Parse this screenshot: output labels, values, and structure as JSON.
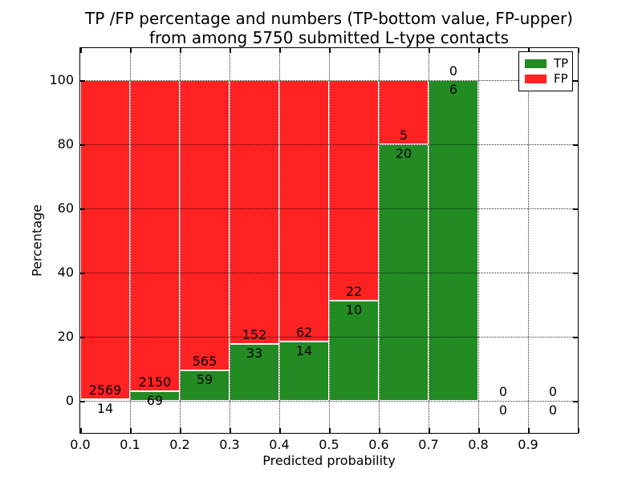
{
  "title": {
    "line1": "TP /FP percentage and numbers (TP-bottom value, FP-upper)",
    "line2": "from among 5750 submitted L-type contacts"
  },
  "chart_data": {
    "type": "bar",
    "stacked": true,
    "title": "TP /FP percentage and numbers (TP-bottom value, FP-upper) from among 5750 submitted L-type contacts",
    "xlabel": "Predicted probability",
    "ylabel": "Percentage",
    "x_tick_labels": [
      "0.0",
      "0.1",
      "0.2",
      "0.3",
      "0.4",
      "0.5",
      "0.6",
      "0.7",
      "0.8",
      "0.9"
    ],
    "bin_width": 0.1,
    "xlim": [
      0.0,
      1.0
    ],
    "y_ticks": [
      0,
      20,
      40,
      60,
      80,
      100
    ],
    "ylim": [
      -10,
      110
    ],
    "grid": "dotted, both axes, drawn over bars",
    "total_contacts": 5750,
    "series": [
      {
        "name": "TP",
        "color": "#228b22",
        "position": "bottom",
        "counts": [
          14,
          69,
          59,
          33,
          14,
          10,
          20,
          6,
          0,
          0
        ],
        "percent": [
          0.54,
          3.11,
          9.46,
          17.84,
          18.42,
          31.25,
          80.0,
          100.0,
          0.0,
          0.0
        ]
      },
      {
        "name": "FP",
        "color": "#ff2222",
        "position": "top",
        "counts": [
          2569,
          2150,
          565,
          152,
          62,
          22,
          5,
          0,
          0,
          0
        ],
        "percent": [
          99.46,
          96.89,
          90.54,
          82.16,
          81.58,
          68.75,
          20.0,
          0.0,
          0.0,
          0.0
        ]
      }
    ],
    "legend": {
      "position": "upper right",
      "entries": [
        "TP",
        "FP"
      ]
    },
    "bar_edge_color": "#ffffff"
  },
  "colors": {
    "tp": "#228b22",
    "fp": "#ff2222",
    "grid": "#000000",
    "frame": "#000000",
    "background": "#ffffff"
  }
}
